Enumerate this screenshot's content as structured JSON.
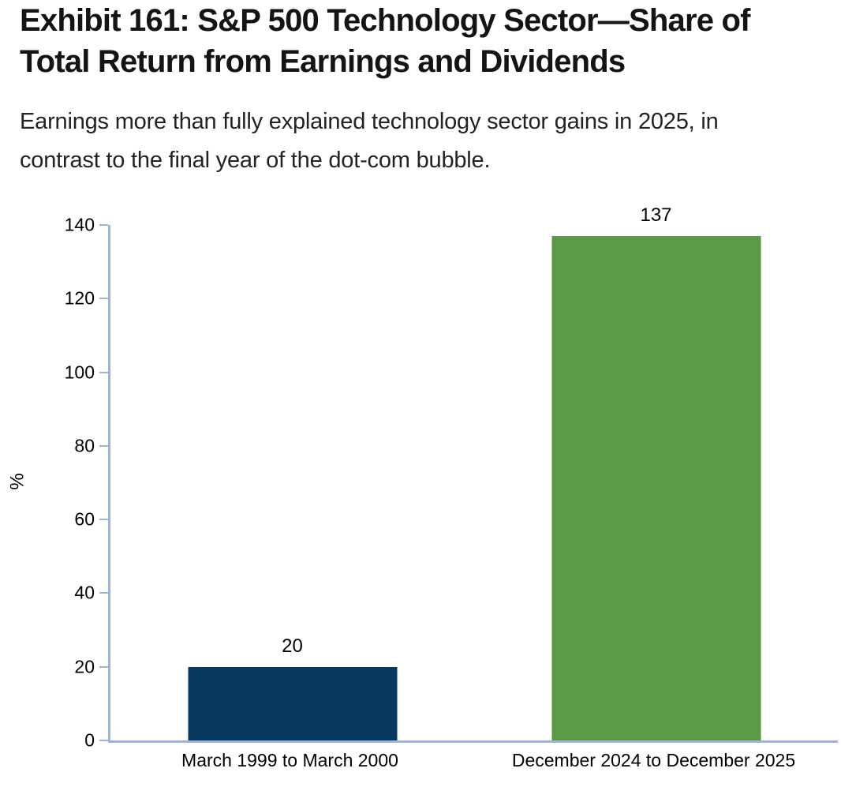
{
  "header": {
    "title": "Exhibit 161: S&P 500 Technology Sector—Share of Total Return from Earnings and Dividends",
    "subtitle": "Earnings more than fully explained technology sector gains in 2025, in contrast to the final year of the dot-com bubble."
  },
  "chart_data": {
    "type": "bar",
    "categories": [
      "March 1999 to March 2000",
      "December 2024 to December 2025"
    ],
    "values": [
      20,
      137
    ],
    "data_labels": [
      "20",
      "137"
    ],
    "bar_colors": [
      "#073860",
      "#5c9945"
    ],
    "title": "",
    "xlabel": "",
    "ylabel": "%",
    "ylim": [
      0,
      140
    ],
    "yticks": [
      0,
      20,
      40,
      60,
      80,
      100,
      120,
      140
    ],
    "grid": false,
    "legend": false,
    "axis_color": "#9db4d6"
  }
}
